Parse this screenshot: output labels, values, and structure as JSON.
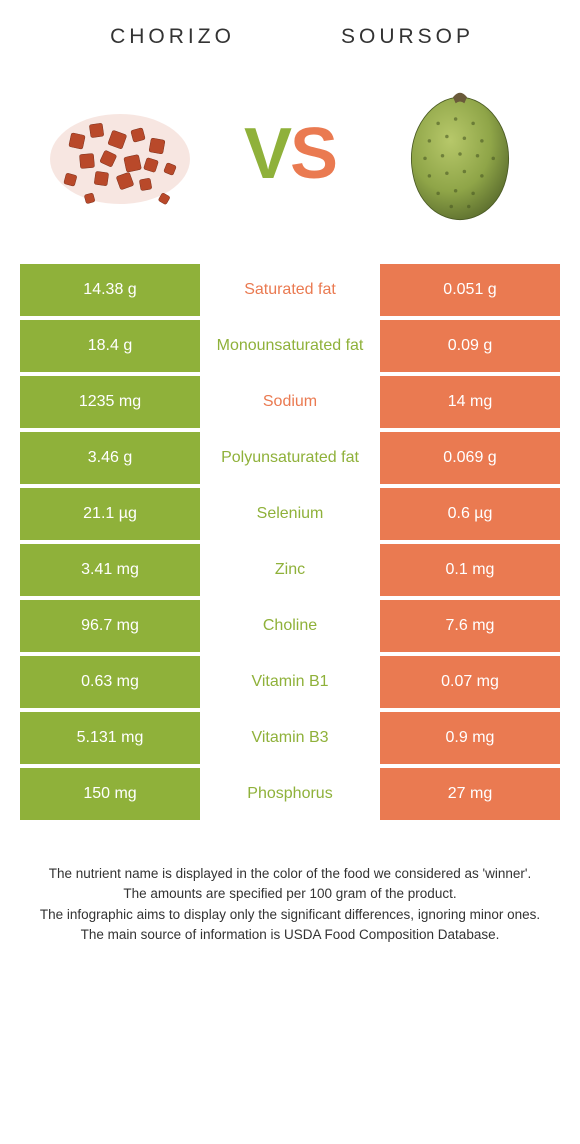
{
  "colors": {
    "left": "#8fb13a",
    "right": "#ea7a51",
    "text": "#333333",
    "bg": "#ffffff"
  },
  "foods": {
    "left": {
      "name": "CHORIZO"
    },
    "right": {
      "name": "SOURSOP"
    }
  },
  "vs": {
    "v": "V",
    "s": "S"
  },
  "rows": [
    {
      "left": "14.38 g",
      "label": "Saturated fat",
      "right": "0.051 g",
      "winner": "right"
    },
    {
      "left": "18.4 g",
      "label": "Monounsaturated fat",
      "right": "0.09 g",
      "winner": "left"
    },
    {
      "left": "1235 mg",
      "label": "Sodium",
      "right": "14 mg",
      "winner": "right"
    },
    {
      "left": "3.46 g",
      "label": "Polyunsaturated fat",
      "right": "0.069 g",
      "winner": "left"
    },
    {
      "left": "21.1 µg",
      "label": "Selenium",
      "right": "0.6 µg",
      "winner": "left"
    },
    {
      "left": "3.41 mg",
      "label": "Zinc",
      "right": "0.1 mg",
      "winner": "left"
    },
    {
      "left": "96.7 mg",
      "label": "Choline",
      "right": "7.6 mg",
      "winner": "left"
    },
    {
      "left": "0.63 mg",
      "label": "Vitamin B1",
      "right": "0.07 mg",
      "winner": "left"
    },
    {
      "left": "5.131 mg",
      "label": "Vitamin B3",
      "right": "0.9 mg",
      "winner": "left"
    },
    {
      "left": "150 mg",
      "label": "Phosphorus",
      "right": "27 mg",
      "winner": "left"
    }
  ],
  "footnotes": [
    "The nutrient name is displayed in the color of the food we considered as 'winner'.",
    "The amounts are specified per 100 gram of the product.",
    "The infographic aims to display only the significant differences, ignoring minor ones.",
    "The main source of information is USDA Food Composition Database."
  ]
}
